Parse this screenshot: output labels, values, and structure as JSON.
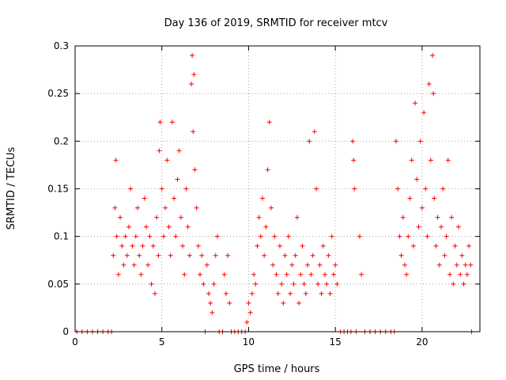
{
  "chart_data": {
    "type": "scatter",
    "title": "Day 136 of 2019, SRMTID for receiver mtcv",
    "xlabel": "GPS time / hours",
    "ylabel": "SRMTID / TECUs",
    "xlim": [
      0,
      23.333
    ],
    "ylim": [
      0,
      0.3
    ],
    "x_ticks": [
      0,
      5,
      10,
      15,
      20
    ],
    "y_ticks": [
      0,
      0.05,
      0.1,
      0.15,
      0.2,
      0.25,
      0.3
    ],
    "x_tick_labels": [
      "0",
      "5",
      "10",
      "15",
      "20"
    ],
    "y_tick_labels": [
      "0",
      "0.05",
      "0.1",
      "0.15",
      "0.2",
      "0.25",
      "0.3"
    ],
    "grid": true,
    "marker": "+",
    "series": [
      {
        "name": "SRMTID",
        "color": "#ff0000",
        "points": [
          [
            0.1,
            0
          ],
          [
            0.4,
            0
          ],
          [
            0.7,
            0
          ],
          [
            1.0,
            0
          ],
          [
            1.3,
            0
          ],
          [
            1.6,
            0
          ],
          [
            1.9,
            0
          ],
          [
            2.1,
            0
          ],
          [
            2.2,
            0.08
          ],
          [
            2.3,
            0.13
          ],
          [
            2.35,
            0.18
          ],
          [
            2.4,
            0.1
          ],
          [
            2.5,
            0.06
          ],
          [
            2.6,
            0.12
          ],
          [
            2.7,
            0.09
          ],
          [
            2.8,
            0.07
          ],
          [
            2.9,
            0.1
          ],
          [
            3.0,
            0.08
          ],
          [
            3.1,
            0.11
          ],
          [
            3.2,
            0.15
          ],
          [
            3.3,
            0.09
          ],
          [
            3.4,
            0.07
          ],
          [
            3.5,
            0.1
          ],
          [
            3.6,
            0.13
          ],
          [
            3.7,
            0.08
          ],
          [
            3.8,
            0.06
          ],
          [
            3.9,
            0.09
          ],
          [
            4.0,
            0.14
          ],
          [
            4.1,
            0.11
          ],
          [
            4.2,
            0.07
          ],
          [
            4.3,
            0.1
          ],
          [
            4.4,
            0.05
          ],
          [
            4.5,
            0.09
          ],
          [
            4.6,
            0.04
          ],
          [
            4.7,
            0.12
          ],
          [
            4.8,
            0.08
          ],
          [
            4.85,
            0.19
          ],
          [
            4.9,
            0.22
          ],
          [
            5.0,
            0.15
          ],
          [
            5.1,
            0.1
          ],
          [
            5.2,
            0.13
          ],
          [
            5.3,
            0.18
          ],
          [
            5.4,
            0.11
          ],
          [
            5.5,
            0.08
          ],
          [
            5.6,
            0.22
          ],
          [
            5.7,
            0.14
          ],
          [
            5.8,
            0.1
          ],
          [
            5.9,
            0.16
          ],
          [
            6.0,
            0.19
          ],
          [
            6.1,
            0.12
          ],
          [
            6.2,
            0.09
          ],
          [
            6.3,
            0.06
          ],
          [
            6.4,
            0.15
          ],
          [
            6.5,
            0.11
          ],
          [
            6.6,
            0.08
          ],
          [
            6.7,
            0.26
          ],
          [
            6.75,
            0.29
          ],
          [
            6.8,
            0.21
          ],
          [
            6.85,
            0.27
          ],
          [
            6.9,
            0.17
          ],
          [
            7.0,
            0.13
          ],
          [
            7.1,
            0.09
          ],
          [
            7.2,
            0.06
          ],
          [
            7.3,
            0.08
          ],
          [
            7.4,
            0.05
          ],
          [
            7.5,
            0
          ],
          [
            7.6,
            0.07
          ],
          [
            7.7,
            0.04
          ],
          [
            7.8,
            0.03
          ],
          [
            7.9,
            0.02
          ],
          [
            8.0,
            0.05
          ],
          [
            8.1,
            0.08
          ],
          [
            8.2,
            0.1
          ],
          [
            8.3,
            0
          ],
          [
            8.5,
            0
          ],
          [
            8.6,
            0.06
          ],
          [
            8.7,
            0.04
          ],
          [
            8.8,
            0.08
          ],
          [
            8.9,
            0.03
          ],
          [
            9.0,
            0
          ],
          [
            9.2,
            0
          ],
          [
            9.4,
            0
          ],
          [
            9.6,
            0
          ],
          [
            9.8,
            0
          ],
          [
            9.9,
            0.01
          ],
          [
            10.0,
            0.03
          ],
          [
            10.1,
            0.02
          ],
          [
            10.2,
            0.04
          ],
          [
            10.3,
            0.06
          ],
          [
            10.4,
            0.05
          ],
          [
            10.5,
            0.09
          ],
          [
            10.6,
            0.12
          ],
          [
            10.7,
            0.1
          ],
          [
            10.8,
            0.14
          ],
          [
            10.9,
            0.08
          ],
          [
            11.0,
            0.11
          ],
          [
            11.1,
            0.17
          ],
          [
            11.2,
            0.22
          ],
          [
            11.3,
            0.13
          ],
          [
            11.4,
            0.07
          ],
          [
            11.5,
            0.1
          ],
          [
            11.6,
            0.06
          ],
          [
            11.7,
            0.04
          ],
          [
            11.8,
            0.09
          ],
          [
            11.9,
            0.05
          ],
          [
            12.0,
            0.03
          ],
          [
            12.1,
            0.08
          ],
          [
            12.2,
            0.06
          ],
          [
            12.3,
            0.1
          ],
          [
            12.4,
            0.04
          ],
          [
            12.5,
            0.07
          ],
          [
            12.6,
            0.05
          ],
          [
            12.7,
            0.08
          ],
          [
            12.8,
            0.12
          ],
          [
            12.9,
            0.03
          ],
          [
            13.0,
            0.06
          ],
          [
            13.1,
            0.09
          ],
          [
            13.2,
            0.05
          ],
          [
            13.3,
            0.04
          ],
          [
            13.4,
            0.07
          ],
          [
            13.5,
            0.2
          ],
          [
            13.6,
            0.06
          ],
          [
            13.7,
            0.08
          ],
          [
            13.8,
            0.21
          ],
          [
            13.9,
            0.15
          ],
          [
            14.0,
            0.05
          ],
          [
            14.1,
            0.07
          ],
          [
            14.2,
            0.04
          ],
          [
            14.3,
            0.09
          ],
          [
            14.4,
            0.06
          ],
          [
            14.5,
            0.05
          ],
          [
            14.6,
            0.08
          ],
          [
            14.7,
            0.04
          ],
          [
            14.8,
            0.1
          ],
          [
            14.9,
            0.06
          ],
          [
            15.0,
            0.07
          ],
          [
            15.1,
            0.05
          ],
          [
            15.3,
            0
          ],
          [
            15.5,
            0
          ],
          [
            15.7,
            0
          ],
          [
            15.9,
            0
          ],
          [
            16.0,
            0.2
          ],
          [
            16.05,
            0.18
          ],
          [
            16.1,
            0.15
          ],
          [
            16.2,
            0
          ],
          [
            16.4,
            0.1
          ],
          [
            16.5,
            0.06
          ],
          [
            16.7,
            0
          ],
          [
            17.0,
            0
          ],
          [
            17.3,
            0
          ],
          [
            17.6,
            0
          ],
          [
            17.9,
            0
          ],
          [
            18.2,
            0
          ],
          [
            18.4,
            0
          ],
          [
            18.5,
            0.2
          ],
          [
            18.6,
            0.15
          ],
          [
            18.7,
            0.1
          ],
          [
            18.8,
            0.08
          ],
          [
            18.9,
            0.12
          ],
          [
            19.0,
            0.07
          ],
          [
            19.1,
            0.06
          ],
          [
            19.2,
            0.1
          ],
          [
            19.3,
            0.14
          ],
          [
            19.4,
            0.18
          ],
          [
            19.5,
            0.09
          ],
          [
            19.6,
            0.24
          ],
          [
            19.7,
            0.16
          ],
          [
            19.8,
            0.11
          ],
          [
            19.9,
            0.2
          ],
          [
            20.0,
            0.13
          ],
          [
            20.1,
            0.23
          ],
          [
            20.2,
            0.15
          ],
          [
            20.3,
            0.1
          ],
          [
            20.4,
            0.26
          ],
          [
            20.5,
            0.18
          ],
          [
            20.6,
            0.29
          ],
          [
            20.65,
            0.25
          ],
          [
            20.7,
            0.14
          ],
          [
            20.8,
            0.09
          ],
          [
            20.9,
            0.12
          ],
          [
            21.0,
            0.07
          ],
          [
            21.1,
            0.11
          ],
          [
            21.2,
            0.15
          ],
          [
            21.3,
            0.08
          ],
          [
            21.4,
            0.1
          ],
          [
            21.5,
            0.18
          ],
          [
            21.6,
            0.06
          ],
          [
            21.7,
            0.12
          ],
          [
            21.8,
            0.05
          ],
          [
            21.9,
            0.09
          ],
          [
            22.0,
            0.07
          ],
          [
            22.1,
            0.11
          ],
          [
            22.2,
            0.06
          ],
          [
            22.3,
            0.08
          ],
          [
            22.4,
            0.05
          ],
          [
            22.5,
            0.07
          ],
          [
            22.6,
            0.06
          ],
          [
            22.7,
            0.09
          ],
          [
            22.8,
            0.07
          ],
          [
            22.85,
            0.0
          ]
        ]
      }
    ]
  }
}
